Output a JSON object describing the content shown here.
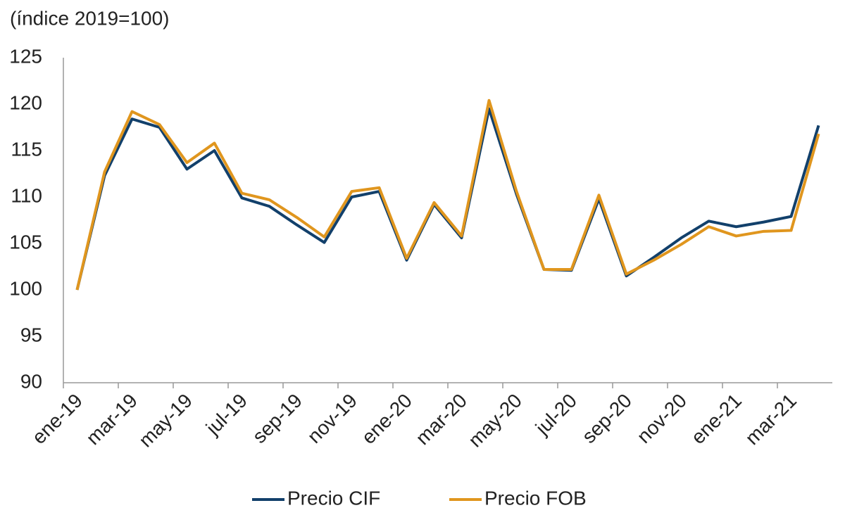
{
  "chart_data": {
    "type": "line",
    "y_label": "(índice 2019=100)",
    "categories": [
      "ene-19",
      null,
      "mar-19",
      null,
      "may-19",
      null,
      "jul-19",
      null,
      "sep-19",
      null,
      "nov-19",
      null,
      "ene-20",
      null,
      "mar-20",
      null,
      "may-20",
      null,
      "jul-20",
      null,
      "sep-20",
      null,
      "nov-20",
      null,
      "ene-21",
      null,
      "mar-21",
      null
    ],
    "series": [
      {
        "name": "Precio CIF",
        "color": "#12406b",
        "values": [
          100,
          112.3,
          118.4,
          117.5,
          113.0,
          115.0,
          109.9,
          109.0,
          107.0,
          105.1,
          110.0,
          110.6,
          103.2,
          109.2,
          105.6,
          119.5,
          110.3,
          102.2,
          102.1,
          109.8,
          101.5,
          103.5,
          105.6,
          107.4,
          106.8,
          107.3,
          107.9,
          117.7
        ]
      },
      {
        "name": "Precio FOB",
        "color": "#e0961e",
        "values": [
          100,
          112.7,
          119.2,
          117.8,
          113.7,
          115.8,
          110.4,
          109.7,
          107.8,
          105.7,
          110.6,
          111.0,
          103.4,
          109.4,
          105.8,
          120.4,
          110.6,
          102.2,
          102.2,
          110.2,
          101.7,
          103.2,
          104.9,
          106.8,
          105.8,
          106.3,
          106.4,
          116.8
        ]
      }
    ],
    "ylim": [
      90,
      125
    ],
    "yticks": [
      90,
      95,
      100,
      105,
      110,
      115,
      120,
      125
    ]
  }
}
